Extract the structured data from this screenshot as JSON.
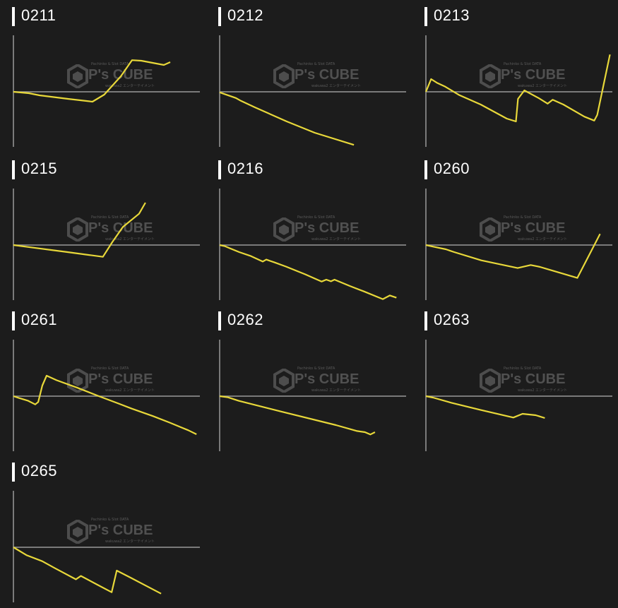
{
  "watermark": {
    "top": "Pachinko & Slot DATA",
    "main": "P's CUBE",
    "sub": "wakuwa2 エンターテイメント"
  },
  "colors": {
    "background": "#1c1c1c",
    "line": "#e8d83a",
    "axis": "#9a9a9a",
    "title": "#ffffff"
  },
  "chart_data": [
    {
      "type": "line",
      "title": "0211",
      "xlim": [
        0,
        100
      ],
      "ylim": [
        -100,
        100
      ],
      "grid": false,
      "x": [
        0,
        8.3,
        14,
        29.2,
        42.4,
        48.7,
        57.6,
        63.6,
        68.6,
        80.7,
        84.1
      ],
      "y": [
        0,
        -2.5,
        -6.3,
        -12.5,
        -17.5,
        -5,
        27.5,
        56,
        55,
        47.5,
        52.5
      ]
    },
    {
      "type": "line",
      "title": "0212",
      "xlim": [
        0,
        100
      ],
      "ylim": [
        -100,
        100
      ],
      "grid": false,
      "x": [
        0,
        8.7,
        11.4,
        18.9,
        36,
        51,
        72
      ],
      "y": [
        -1,
        -11,
        -16,
        -27.5,
        -52.5,
        -72.5,
        -94
      ]
    },
    {
      "type": "line",
      "title": "0213",
      "xlim": [
        0,
        100
      ],
      "ylim": [
        -100,
        100
      ],
      "grid": false,
      "x": [
        0,
        2.8,
        5.9,
        10.4,
        18,
        29.4,
        43.4,
        48.3,
        49.4,
        52.8,
        60.4,
        65.3,
        68,
        73.7,
        85,
        90.3,
        91.9,
        94.5,
        98.7
      ],
      "y": [
        0,
        22.5,
        16,
        9,
        -6,
        -22.5,
        -47.5,
        -52.5,
        -12.5,
        2.5,
        -11,
        -21,
        -14,
        -22.5,
        -44,
        -51,
        -41,
        0,
        66
      ]
    },
    {
      "type": "line",
      "title": "0215",
      "xlim": [
        0,
        100
      ],
      "ylim": [
        -100,
        100
      ],
      "grid": false,
      "x": [
        0,
        7.6,
        29,
        48,
        53,
        58.7,
        67.4,
        70.8
      ],
      "y": [
        0,
        -3.4,
        -12.5,
        -20.9,
        5,
        32,
        55.4,
        75
      ]
    },
    {
      "type": "line",
      "title": "0216",
      "xlim": [
        0,
        100
      ],
      "ylim": [
        -100,
        100
      ],
      "grid": false,
      "x": [
        0,
        2.9,
        5.5,
        10.5,
        16.8,
        23.1,
        25,
        29.4,
        35.7,
        42,
        45.8,
        54.7,
        57.2,
        59.7,
        61.6,
        69.8,
        77.4,
        87.5,
        91.3,
        94.8
      ],
      "y": [
        0,
        -2.1,
        -5.8,
        -12.5,
        -19.6,
        -29.2,
        -25.8,
        -30.8,
        -38.3,
        -46.7,
        -51.7,
        -64.6,
        -61.2,
        -64.2,
        -61.2,
        -72.5,
        -82.1,
        -95.8,
        -89.2,
        -93.3
      ]
    },
    {
      "type": "line",
      "title": "0260",
      "xlim": [
        0,
        100
      ],
      "ylim": [
        -100,
        100
      ],
      "grid": false,
      "x": [
        0,
        4.4,
        10.7,
        15.2,
        29.7,
        49.2,
        56.2,
        61.2,
        81.2,
        93.4
      ],
      "y": [
        0,
        -3.3,
        -7.5,
        -12.5,
        -27.1,
        -40.8,
        -35.4,
        -38.8,
        -58.3,
        19.6
      ]
    },
    {
      "type": "line",
      "title": "0261",
      "xlim": [
        0,
        100
      ],
      "ylim": [
        -100,
        100
      ],
      "grid": false,
      "x": [
        0,
        2.9,
        7.9,
        11.7,
        13.3,
        15.5,
        17.8,
        23.1,
        34.5,
        45.8,
        55.9,
        63.5,
        74.9,
        83.7,
        93.8,
        98.2
      ],
      "y": [
        0,
        -3.3,
        -8.3,
        -14.6,
        -10.4,
        18.8,
        36.3,
        28.3,
        14.6,
        0,
        -12.5,
        -22.1,
        -35.4,
        -46.7,
        -60.4,
        -67.5
      ]
    },
    {
      "type": "line",
      "title": "0262",
      "xlim": [
        0,
        100
      ],
      "ylim": [
        -100,
        100
      ],
      "grid": false,
      "x": [
        0,
        4.5,
        10.2,
        32.8,
        62.4,
        73.7,
        77.9,
        80.8,
        83.3
      ],
      "y": [
        0,
        -2.1,
        -8.3,
        -27.1,
        -51.3,
        -61.7,
        -63.8,
        -67.9,
        -63.8
      ]
    },
    {
      "type": "line",
      "title": "0263",
      "xlim": [
        0,
        100
      ],
      "ylim": [
        -100,
        100
      ],
      "grid": false,
      "x": [
        0,
        3.8,
        13.7,
        29.2,
        46.9,
        51.8,
        58.9,
        63.8
      ],
      "y": [
        0,
        -2.5,
        -11.7,
        -24.2,
        -37.9,
        -31.3,
        -33.8,
        -38.8
      ]
    },
    {
      "type": "line",
      "title": "0265",
      "xlim": [
        0,
        100
      ],
      "ylim": [
        -100,
        100
      ],
      "grid": false,
      "x": [
        0,
        7.2,
        15.4,
        22.3,
        33.5,
        36.2,
        45,
        52.7,
        55.4,
        62.8,
        79.2
      ],
      "y": [
        0,
        -14.2,
        -24.6,
        -37.1,
        -56.7,
        -50.8,
        -66.3,
        -79.6,
        -41.3,
        -53.8,
        -82.1
      ]
    }
  ]
}
